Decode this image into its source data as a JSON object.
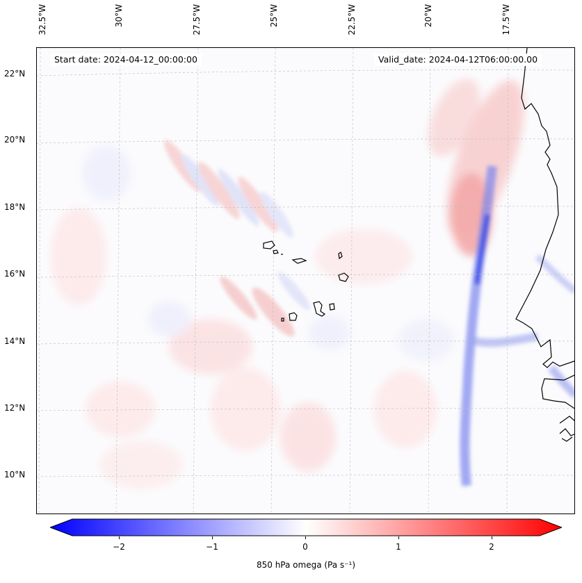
{
  "header": {
    "start_date": "Start date: 2024-04-12_00:00:00",
    "valid_date": "Valid_date: 2024-04-12T06:00:00.00"
  },
  "map": {
    "lon_labels": [
      "32.5°W",
      "30°W",
      "27.5°W",
      "25°W",
      "22.5°W",
      "20°W",
      "17.5°W"
    ],
    "lat_labels": [
      "22°N",
      "20°N",
      "18°N",
      "16°N",
      "14°N",
      "12°N",
      "10°N"
    ],
    "gridlines": true,
    "field_colors": {
      "negative": "#0000ff",
      "neutral": "#ffffff",
      "positive": "#ff0000",
      "coastline": "#000000"
    }
  },
  "colorbar": {
    "label": "850 hPa omega (Pa s⁻¹)",
    "ticks": [
      "−2",
      "−1",
      "0",
      "1",
      "2"
    ],
    "range": [
      -2.5,
      2.5
    ],
    "extend": "both",
    "colormap": "bwr"
  }
}
